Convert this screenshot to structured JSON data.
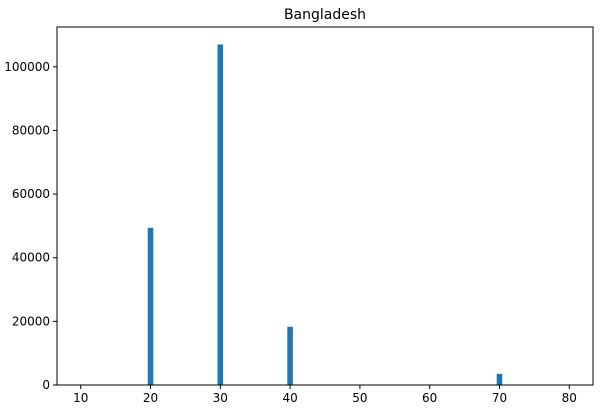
{
  "chart_data": {
    "type": "bar",
    "title": "Bangladesh",
    "xlabel": "",
    "ylabel": "",
    "x": [
      20,
      30,
      40,
      70
    ],
    "values": [
      49400,
      107000,
      18300,
      3500
    ],
    "bar_width": 0.8,
    "xlim": [
      6.6,
      83.4
    ],
    "ylim": [
      0,
      112500
    ],
    "xticks": [
      10,
      20,
      30,
      40,
      50,
      60,
      70,
      80
    ],
    "xtick_labels": [
      "10",
      "20",
      "30",
      "40",
      "50",
      "60",
      "70",
      "80"
    ],
    "yticks": [
      0,
      20000,
      40000,
      60000,
      80000,
      100000
    ],
    "ytick_labels": [
      "0",
      "20000",
      "40000",
      "60000",
      "80000",
      "100000"
    ],
    "grid": false,
    "legend": "none",
    "bar_color": "#1f77b4"
  }
}
